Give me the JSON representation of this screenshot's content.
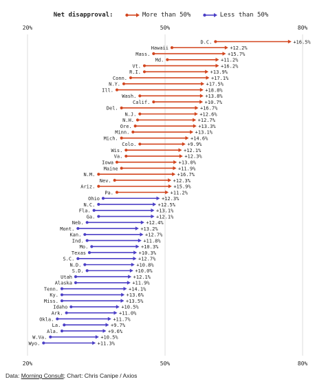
{
  "legend": {
    "label": "Net disapproval:",
    "more": "More than 50%",
    "less": "Less than 50%"
  },
  "colors": {
    "more": "#d2451e",
    "less": "#4b3fc6",
    "grid": "#dddddd",
    "text": "#222222"
  },
  "footer": {
    "prefix": "Data: ",
    "source": "Morning Consult",
    "suffix": "; Chart: Chris Canipe / Axios"
  },
  "chart_data": {
    "type": "dumbbell",
    "xlim": [
      20,
      80
    ],
    "ticks": [
      "20%",
      "50%",
      "80%"
    ],
    "tick_values": [
      20,
      50,
      80
    ],
    "grid": true,
    "legend_position": "top-center",
    "rows": [
      {
        "state": "D.C.",
        "start": 61.0,
        "change": "+16.5%",
        "dir": "more"
      },
      {
        "state": "Hawaii",
        "start": 51.5,
        "change": "+12.2%",
        "dir": "more"
      },
      {
        "state": "Mass.",
        "start": 47.5,
        "change": "+15.7%",
        "dir": "more"
      },
      {
        "state": "Md.",
        "start": 50.5,
        "change": "+11.2%",
        "dir": "more"
      },
      {
        "state": "Vt.",
        "start": 45.5,
        "change": "+16.2%",
        "dir": "more"
      },
      {
        "state": "R.I.",
        "start": 45.5,
        "change": "+13.9%",
        "dir": "more"
      },
      {
        "state": "Conn.",
        "start": 42.5,
        "change": "+17.1%",
        "dir": "more"
      },
      {
        "state": "N.Y.",
        "start": 41.0,
        "change": "+17.5%",
        "dir": "more"
      },
      {
        "state": "Ill.",
        "start": 39.5,
        "change": "+18.8%",
        "dir": "more"
      },
      {
        "state": "Wash.",
        "start": 44.5,
        "change": "+13.8%",
        "dir": "more"
      },
      {
        "state": "Calif.",
        "start": 47.5,
        "change": "+10.7%",
        "dir": "more"
      },
      {
        "state": "Del.",
        "start": 40.5,
        "change": "+16.7%",
        "dir": "more"
      },
      {
        "state": "N.J.",
        "start": 44.5,
        "change": "+12.6%",
        "dir": "more"
      },
      {
        "state": "N.H.",
        "start": 44.0,
        "change": "+12.7%",
        "dir": "more"
      },
      {
        "state": "Ore.",
        "start": 43.5,
        "change": "+13.3%",
        "dir": "more"
      },
      {
        "state": "Minn.",
        "start": 43.0,
        "change": "+13.1%",
        "dir": "more"
      },
      {
        "state": "Mich.",
        "start": 40.5,
        "change": "+14.6%",
        "dir": "more"
      },
      {
        "state": "Colo.",
        "start": 44.5,
        "change": "+9.9%",
        "dir": "more"
      },
      {
        "state": "Wis.",
        "start": 41.5,
        "change": "+12.1%",
        "dir": "more"
      },
      {
        "state": "Va.",
        "start": 41.5,
        "change": "+12.3%",
        "dir": "more"
      },
      {
        "state": "Iowa",
        "start": 39.5,
        "change": "+13.0%",
        "dir": "more"
      },
      {
        "state": "Maine",
        "start": 40.5,
        "change": "+11.9%",
        "dir": "more"
      },
      {
        "state": "N.M.",
        "start": 35.5,
        "change": "+16.7%",
        "dir": "more"
      },
      {
        "state": "Nev.",
        "start": 39.0,
        "change": "+12.3%",
        "dir": "more"
      },
      {
        "state": "Ariz.",
        "start": 35.5,
        "change": "+15.9%",
        "dir": "more"
      },
      {
        "state": "Pa.",
        "start": 39.5,
        "change": "+11.2%",
        "dir": "more"
      },
      {
        "state": "Ohio",
        "start": 36.5,
        "change": "+12.3%",
        "dir": "less"
      },
      {
        "state": "N.C.",
        "start": 35.5,
        "change": "+12.5%",
        "dir": "less"
      },
      {
        "state": "Fla.",
        "start": 34.5,
        "change": "+13.1%",
        "dir": "less"
      },
      {
        "state": "Ga.",
        "start": 35.5,
        "change": "+12.1%",
        "dir": "less"
      },
      {
        "state": "Neb.",
        "start": 33.0,
        "change": "+12.4%",
        "dir": "less"
      },
      {
        "state": "Mont.",
        "start": 31.0,
        "change": "+13.2%",
        "dir": "less"
      },
      {
        "state": "Kan.",
        "start": 32.5,
        "change": "+12.7%",
        "dir": "less"
      },
      {
        "state": "Ind.",
        "start": 33.0,
        "change": "+11.8%",
        "dir": "less"
      },
      {
        "state": "Mo.",
        "start": 34.0,
        "change": "+10.3%",
        "dir": "less"
      },
      {
        "state": "Texas",
        "start": 33.5,
        "change": "+10.3%",
        "dir": "less"
      },
      {
        "state": "S.C.",
        "start": 31.0,
        "change": "+12.7%",
        "dir": "less"
      },
      {
        "state": "N.D.",
        "start": 32.5,
        "change": "+10.8%",
        "dir": "less"
      },
      {
        "state": "S.D.",
        "start": 33.0,
        "change": "+10.0%",
        "dir": "less"
      },
      {
        "state": "Utah",
        "start": 30.5,
        "change": "+12.1%",
        "dir": "less"
      },
      {
        "state": "Alaska",
        "start": 30.5,
        "change": "+11.9%",
        "dir": "less"
      },
      {
        "state": "Tenn.",
        "start": 27.5,
        "change": "+14.1%",
        "dir": "less"
      },
      {
        "state": "Ky.",
        "start": 27.5,
        "change": "+13.6%",
        "dir": "less"
      },
      {
        "state": "Miss.",
        "start": 27.5,
        "change": "+13.5%",
        "dir": "less"
      },
      {
        "state": "Idaho",
        "start": 29.5,
        "change": "+10.5%",
        "dir": "less"
      },
      {
        "state": "Ark.",
        "start": 28.5,
        "change": "+11.0%",
        "dir": "less"
      },
      {
        "state": "Okla.",
        "start": 26.5,
        "change": "+11.7%",
        "dir": "less"
      },
      {
        "state": "La.",
        "start": 28.0,
        "change": "+9.7%",
        "dir": "less"
      },
      {
        "state": "Ala.",
        "start": 27.5,
        "change": "+9.6%",
        "dir": "less"
      },
      {
        "state": "W.Va.",
        "start": 25.0,
        "change": "+10.5%",
        "dir": "less"
      },
      {
        "state": "Wyo.",
        "start": 23.5,
        "change": "+11.3%",
        "dir": "less"
      }
    ]
  }
}
